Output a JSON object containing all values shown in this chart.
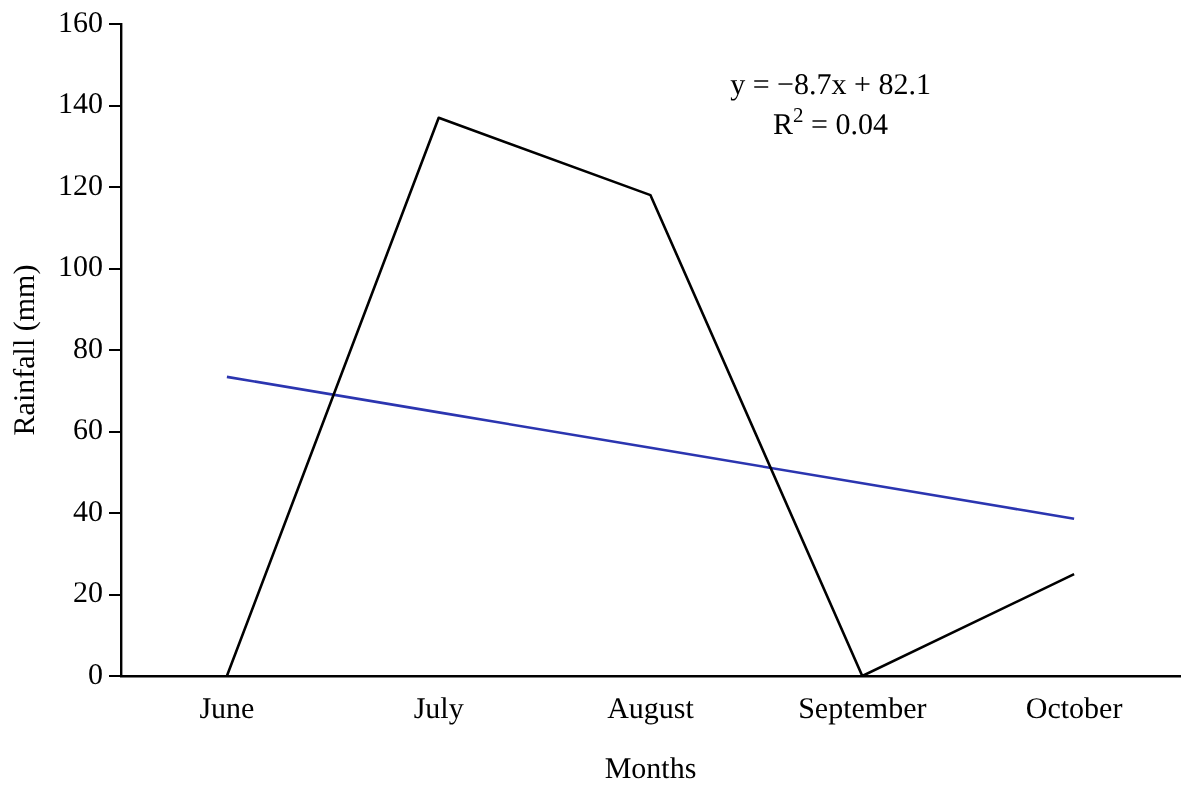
{
  "chart_data": {
    "type": "line",
    "xlabel": "Months",
    "ylabel": "Rainfall (mm)",
    "categories": [
      "June",
      "July",
      "August",
      "September",
      "October"
    ],
    "series": [
      {
        "color": "#000000",
        "values": [
          0,
          137,
          118,
          0,
          25
        ]
      },
      {
        "type": "line",
        "color": "#2b35b0",
        "values": [
          73.4,
          64.7,
          56.0,
          47.3,
          38.6
        ]
      }
    ],
    "ylim": [
      0,
      160
    ],
    "yticks": [
      0,
      20,
      40,
      60,
      80,
      100,
      120,
      140,
      160
    ],
    "grid": false,
    "legend": false,
    "marker": "none",
    "line_style": "solid",
    "annotations": [
      "y = −8.7x + 82.1",
      "R$^{2}$ = 0.04"
    ]
  }
}
